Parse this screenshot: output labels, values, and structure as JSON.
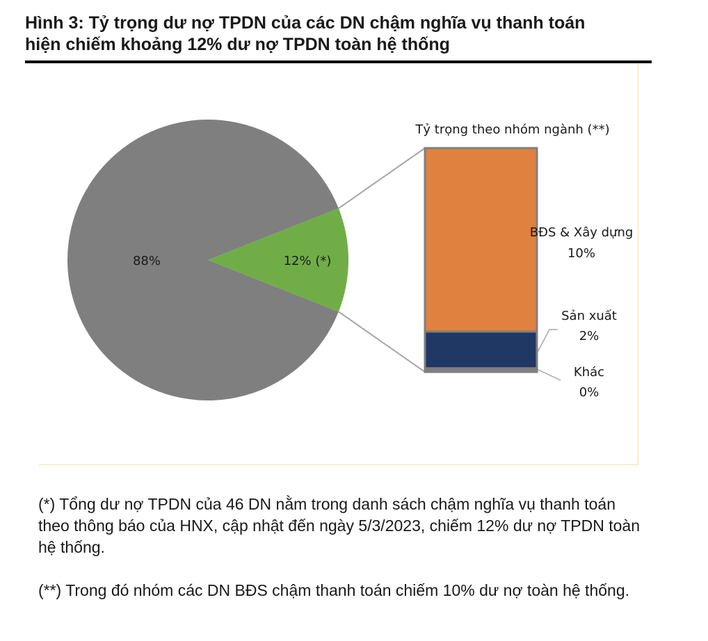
{
  "figure": {
    "title_line1": "Hình 3: Tỷ trọng dư nợ TPDN của các DN chậm nghĩa vụ thanh toán",
    "title_line2": "hiện chiếm khoảng 12% dư nợ TPDN toàn hệ thống"
  },
  "notes": [
    "(*) Tổng dư nợ TPDN của 46 DN nằm trong danh sách chậm nghĩa vụ thanh toán theo thông báo của HNX, cập nhật đến ngày 5/3/2023, chiếm 12% dư nợ TPDN toàn hệ thống.",
    "(**) Trong đó nhóm các DN BĐS chậm thanh toán chiếm 10% dư nợ toàn hệ thống."
  ],
  "chart_data": [
    {
      "type": "pie",
      "slices": [
        {
          "label": "88%",
          "value": 88,
          "color": "#7f7f7f"
        },
        {
          "label": "12% (*)",
          "value": 12,
          "color": "#70ad47"
        }
      ]
    },
    {
      "type": "bar",
      "stacked": true,
      "title": "Tỷ trọng theo nhóm ngành (**)",
      "series": [
        {
          "name": "Khác",
          "value": 0.2,
          "value_label": "0%",
          "color": "#7f7f7f"
        },
        {
          "name": "Sản xuất",
          "value": 2,
          "value_label": "2%",
          "color": "#203864"
        },
        {
          "name": "BĐS & Xây dựng",
          "value": 10,
          "value_label": "10%",
          "color": "#e0813f"
        }
      ]
    }
  ]
}
